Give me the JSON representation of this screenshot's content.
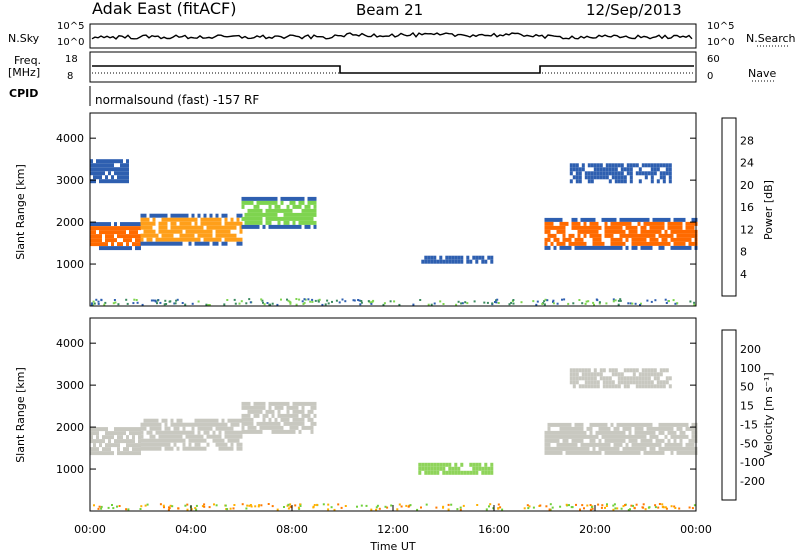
{
  "header": {
    "site": "Adak East (fitACF)",
    "beam": "Beam 21",
    "date": "12/Sep/2013"
  },
  "top_panels": {
    "nsky_label": "N.Sky",
    "nsky_ticks": [
      "10^5",
      "10^0"
    ],
    "nsearch_label": "N.Search",
    "nsearch_ticks": [
      "10^5",
      "10^0"
    ],
    "freq_label_1": "Freq.",
    "freq_label_2": "[MHz]",
    "freq_ticks": [
      "18",
      "8"
    ],
    "nave_label": "Nave",
    "nave_ticks": [
      "60",
      "0"
    ],
    "cpid_label": "CPID",
    "cpid_text": "normalsound (fast) -157 RF"
  },
  "chart_data": [
    {
      "type": "heatmap",
      "name": "power-panel",
      "ylabel": "Slant Range [km]",
      "yticks": [
        "4000",
        "3000",
        "2000",
        "1000"
      ],
      "ylim": [
        0,
        4600
      ],
      "xlim": [
        0,
        24
      ],
      "colorbar_label": "Power [dB]",
      "colorbar_ticks": [
        "28",
        "24",
        "20",
        "16",
        "12",
        "8",
        "4"
      ],
      "colorbar_colors": [
        "#e00000",
        "#ff5a00",
        "#ff9f1a",
        "#ffd000",
        "#7ed44f",
        "#3a8a5e",
        "#2e5fb0",
        "#1a1aff"
      ],
      "echo_bands": [
        {
          "t0": 0,
          "t1": 2,
          "r0": 1300,
          "r1": 2000,
          "color": "#ff6a00"
        },
        {
          "t0": 2,
          "t1": 6,
          "r0": 1400,
          "r1": 2200,
          "color": "#ff9f1a"
        },
        {
          "t0": 6,
          "t1": 9,
          "r0": 1800,
          "r1": 2600,
          "color": "#7ed44f"
        },
        {
          "t0": 0,
          "t1": 1.5,
          "r0": 2900,
          "r1": 3500,
          "color": "#2e5fb0"
        },
        {
          "t0": 13,
          "t1": 16,
          "r0": 1000,
          "r1": 1200,
          "color": "#2e5fb0"
        },
        {
          "t0": 18,
          "t1": 24,
          "r0": 1300,
          "r1": 2100,
          "color": "#ff6a00"
        },
        {
          "t0": 19,
          "t1": 23,
          "r0": 2900,
          "r1": 3400,
          "color": "#2e5fb0"
        }
      ]
    },
    {
      "type": "heatmap",
      "name": "velocity-panel",
      "ylabel": "Slant Range [km]",
      "yticks": [
        "4000",
        "3000",
        "2000",
        "1000"
      ],
      "ylim": [
        0,
        4600
      ],
      "xlim": [
        0,
        24
      ],
      "xlabel": "Time UT",
      "xticks": [
        "00:00",
        "04:00",
        "08:00",
        "12:00",
        "16:00",
        "20:00",
        "00:00"
      ],
      "colorbar_label": "Velocity [m s⁻¹]",
      "colorbar_ticks": [
        "200",
        "100",
        "50",
        "15",
        "-15",
        "-50",
        "-100",
        "-200"
      ],
      "colorbar_colors": [
        "#1a2aa0",
        "#2e6fb5",
        "#3b8a3b",
        "#6fcf3a",
        "#c8c8c0",
        "#ffb000",
        "#ff7a00",
        "#ff3a00",
        "#e00000"
      ],
      "echo_bands": [
        {
          "t0": 0,
          "t1": 2,
          "r0": 1300,
          "r1": 2000,
          "color": "#c8c8c0"
        },
        {
          "t0": 2,
          "t1": 6,
          "r0": 1400,
          "r1": 2200,
          "color": "#c8c8c0"
        },
        {
          "t0": 6,
          "t1": 9,
          "r0": 1800,
          "r1": 2600,
          "color": "#c8c8c0"
        },
        {
          "t0": 13,
          "t1": 16,
          "r0": 900,
          "r1": 1150,
          "color": "#8fd45a"
        },
        {
          "t0": 18,
          "t1": 24,
          "r0": 1300,
          "r1": 2100,
          "color": "#c8c8c0"
        },
        {
          "t0": 19,
          "t1": 23,
          "r0": 2900,
          "r1": 3400,
          "color": "#c8c8c0"
        }
      ]
    }
  ]
}
